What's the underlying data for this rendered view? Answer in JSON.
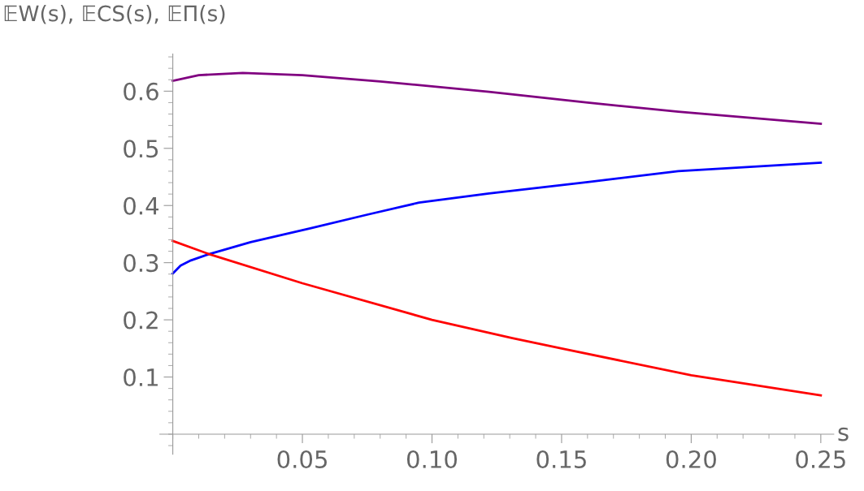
{
  "chart_data": {
    "type": "line",
    "xlabel": "s",
    "ylabel": "𝔼W(s), 𝔼CS(s), 𝔼Π(s)",
    "xlim": [
      -0.005,
      0.255
    ],
    "ylim": [
      -0.035,
      0.665
    ],
    "xticks": [
      0.05,
      {
        "value": 0.1,
        "label": "0.10"
      },
      0.15,
      {
        "value": 0.2,
        "label": "0.20"
      },
      0.25
    ],
    "yticks": [
      0.1,
      0.2,
      0.3,
      0.4,
      0.5,
      0.6
    ],
    "grid": false,
    "legend": false,
    "marker": "none",
    "line_style": "solid",
    "series": [
      {
        "color": "#800080",
        "x": [
          0,
          0.01,
          0.027,
          0.05,
          0.08,
          0.122,
          0.16,
          0.195,
          0.25
        ],
        "values": [
          0.618,
          0.628,
          0.632,
          0.628,
          0.617,
          0.599,
          0.58,
          0.564,
          0.543
        ]
      },
      {
        "color": "#0000ff",
        "x": [
          0,
          0.003,
          0.007,
          0.014,
          0.03,
          0.053,
          0.075,
          0.095,
          0.122,
          0.16,
          0.195,
          0.25
        ],
        "values": [
          0.281,
          0.295,
          0.304,
          0.315,
          0.336,
          0.36,
          0.384,
          0.405,
          0.421,
          0.441,
          0.46,
          0.475
        ]
      },
      {
        "color": "#ff0000",
        "x": [
          0,
          0.014,
          0.05,
          0.1,
          0.131,
          0.15,
          0.2,
          0.25
        ],
        "values": [
          0.338,
          0.315,
          0.264,
          0.2,
          0.168,
          0.15,
          0.103,
          0.068
        ]
      }
    ]
  }
}
